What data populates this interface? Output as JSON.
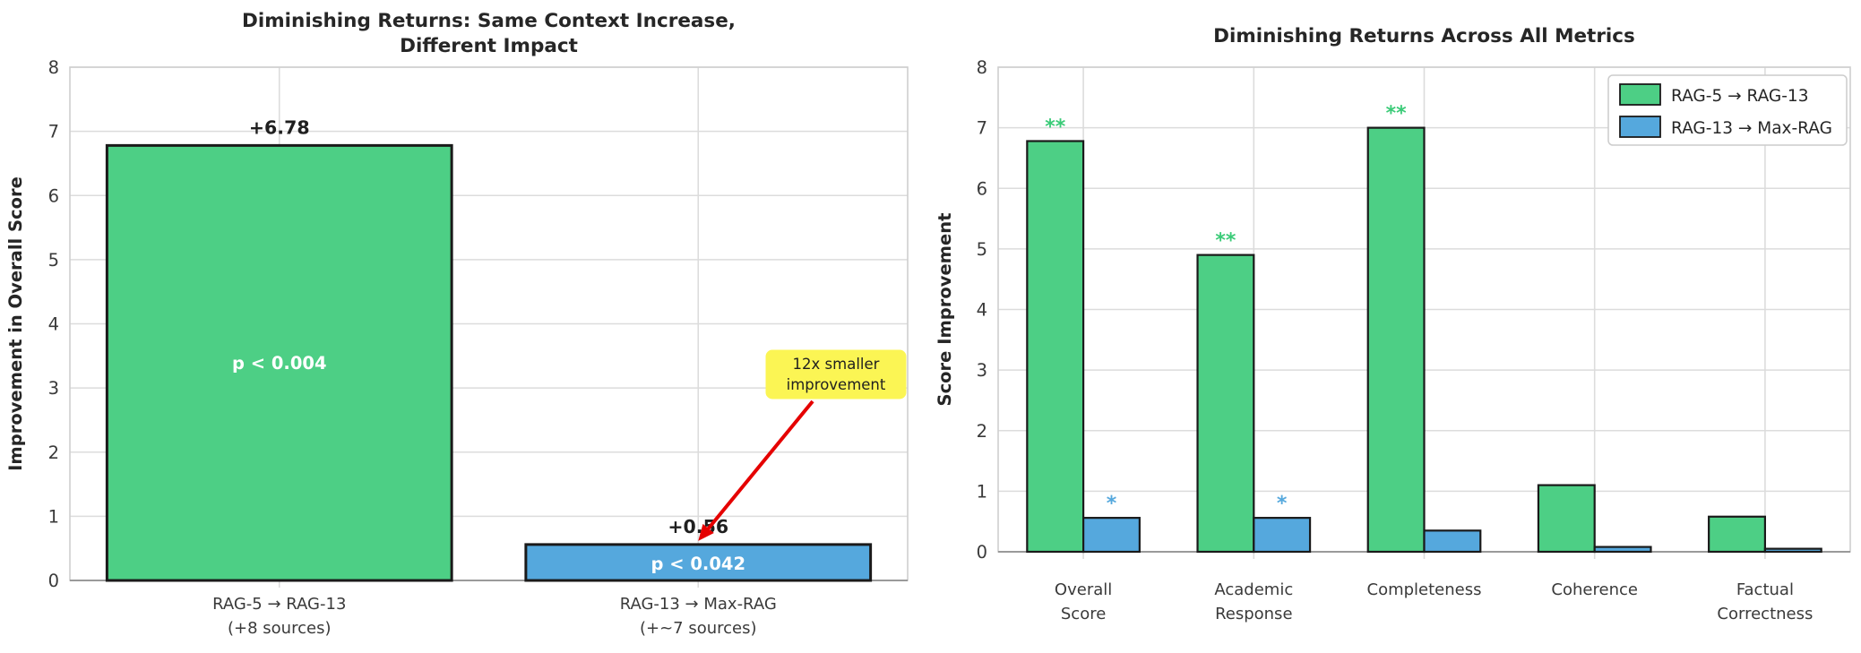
{
  "figure": {
    "background": "#ffffff"
  },
  "colors": {
    "green": "#4DCF85",
    "blue": "#55A8DD",
    "bar_edge": "#1a1a1a",
    "grid": "#DCDCDC",
    "spine": "#CFCFCF",
    "axis_line": "#9A9A9A",
    "title_text": "#262626",
    "tick_text": "#3A3A3A",
    "label_text": "#1F1F1F",
    "inner_label_text": "#FFFFFF",
    "annotation_bg": "#FBF554",
    "annotation_text": "#1F1F1F",
    "arrow": "#E50000",
    "sig_green": "#3BCB78",
    "sig_blue": "#55A8DD",
    "legend_border": "#CCCCCC",
    "legend_bg": "#FFFFFF"
  },
  "chart_data": [
    {
      "type": "bar",
      "title": "Diminishing Returns: Same Context Increase,\nDifferent Impact",
      "xlabel": "",
      "ylabel": "Improvement in Overall Score",
      "ylim": [
        0,
        8
      ],
      "yticks": [
        0,
        1,
        2,
        3,
        4,
        5,
        6,
        7,
        8
      ],
      "grid": true,
      "categories": [
        "RAG-5 → RAG-13\n(+8 sources)",
        "RAG-13 → Max-RAG\n(+~7 sources)"
      ],
      "values": [
        6.78,
        0.56
      ],
      "bar_colors": [
        "green",
        "blue"
      ],
      "bar_value_labels": [
        "+6.78",
        "+0.56"
      ],
      "inner_labels": [
        "p < 0.004",
        "p < 0.042"
      ],
      "annotation": {
        "text": "12x smaller\nimprovement",
        "target_bar_index": 1
      }
    },
    {
      "type": "bar",
      "title": "Diminishing Returns Across All Metrics",
      "xlabel": "",
      "ylabel": "Score Improvement",
      "ylim": [
        0,
        8
      ],
      "yticks": [
        0,
        1,
        2,
        3,
        4,
        5,
        6,
        7,
        8
      ],
      "grid": true,
      "legend_position": "upper right",
      "categories": [
        "Overall\nScore",
        "Academic\nResponse",
        "Completeness",
        "Coherence",
        "Factual\nCorrectness"
      ],
      "series": [
        {
          "name": "RAG-5 → RAG-13",
          "color": "green",
          "values": [
            6.78,
            4.9,
            7.0,
            1.1,
            0.58
          ],
          "significance": [
            "**",
            "**",
            "**",
            "",
            ""
          ]
        },
        {
          "name": "RAG-13 → Max-RAG",
          "color": "blue",
          "values": [
            0.56,
            0.56,
            0.35,
            0.08,
            0.05
          ],
          "significance": [
            "*",
            "*",
            "",
            "",
            ""
          ]
        }
      ]
    }
  ]
}
